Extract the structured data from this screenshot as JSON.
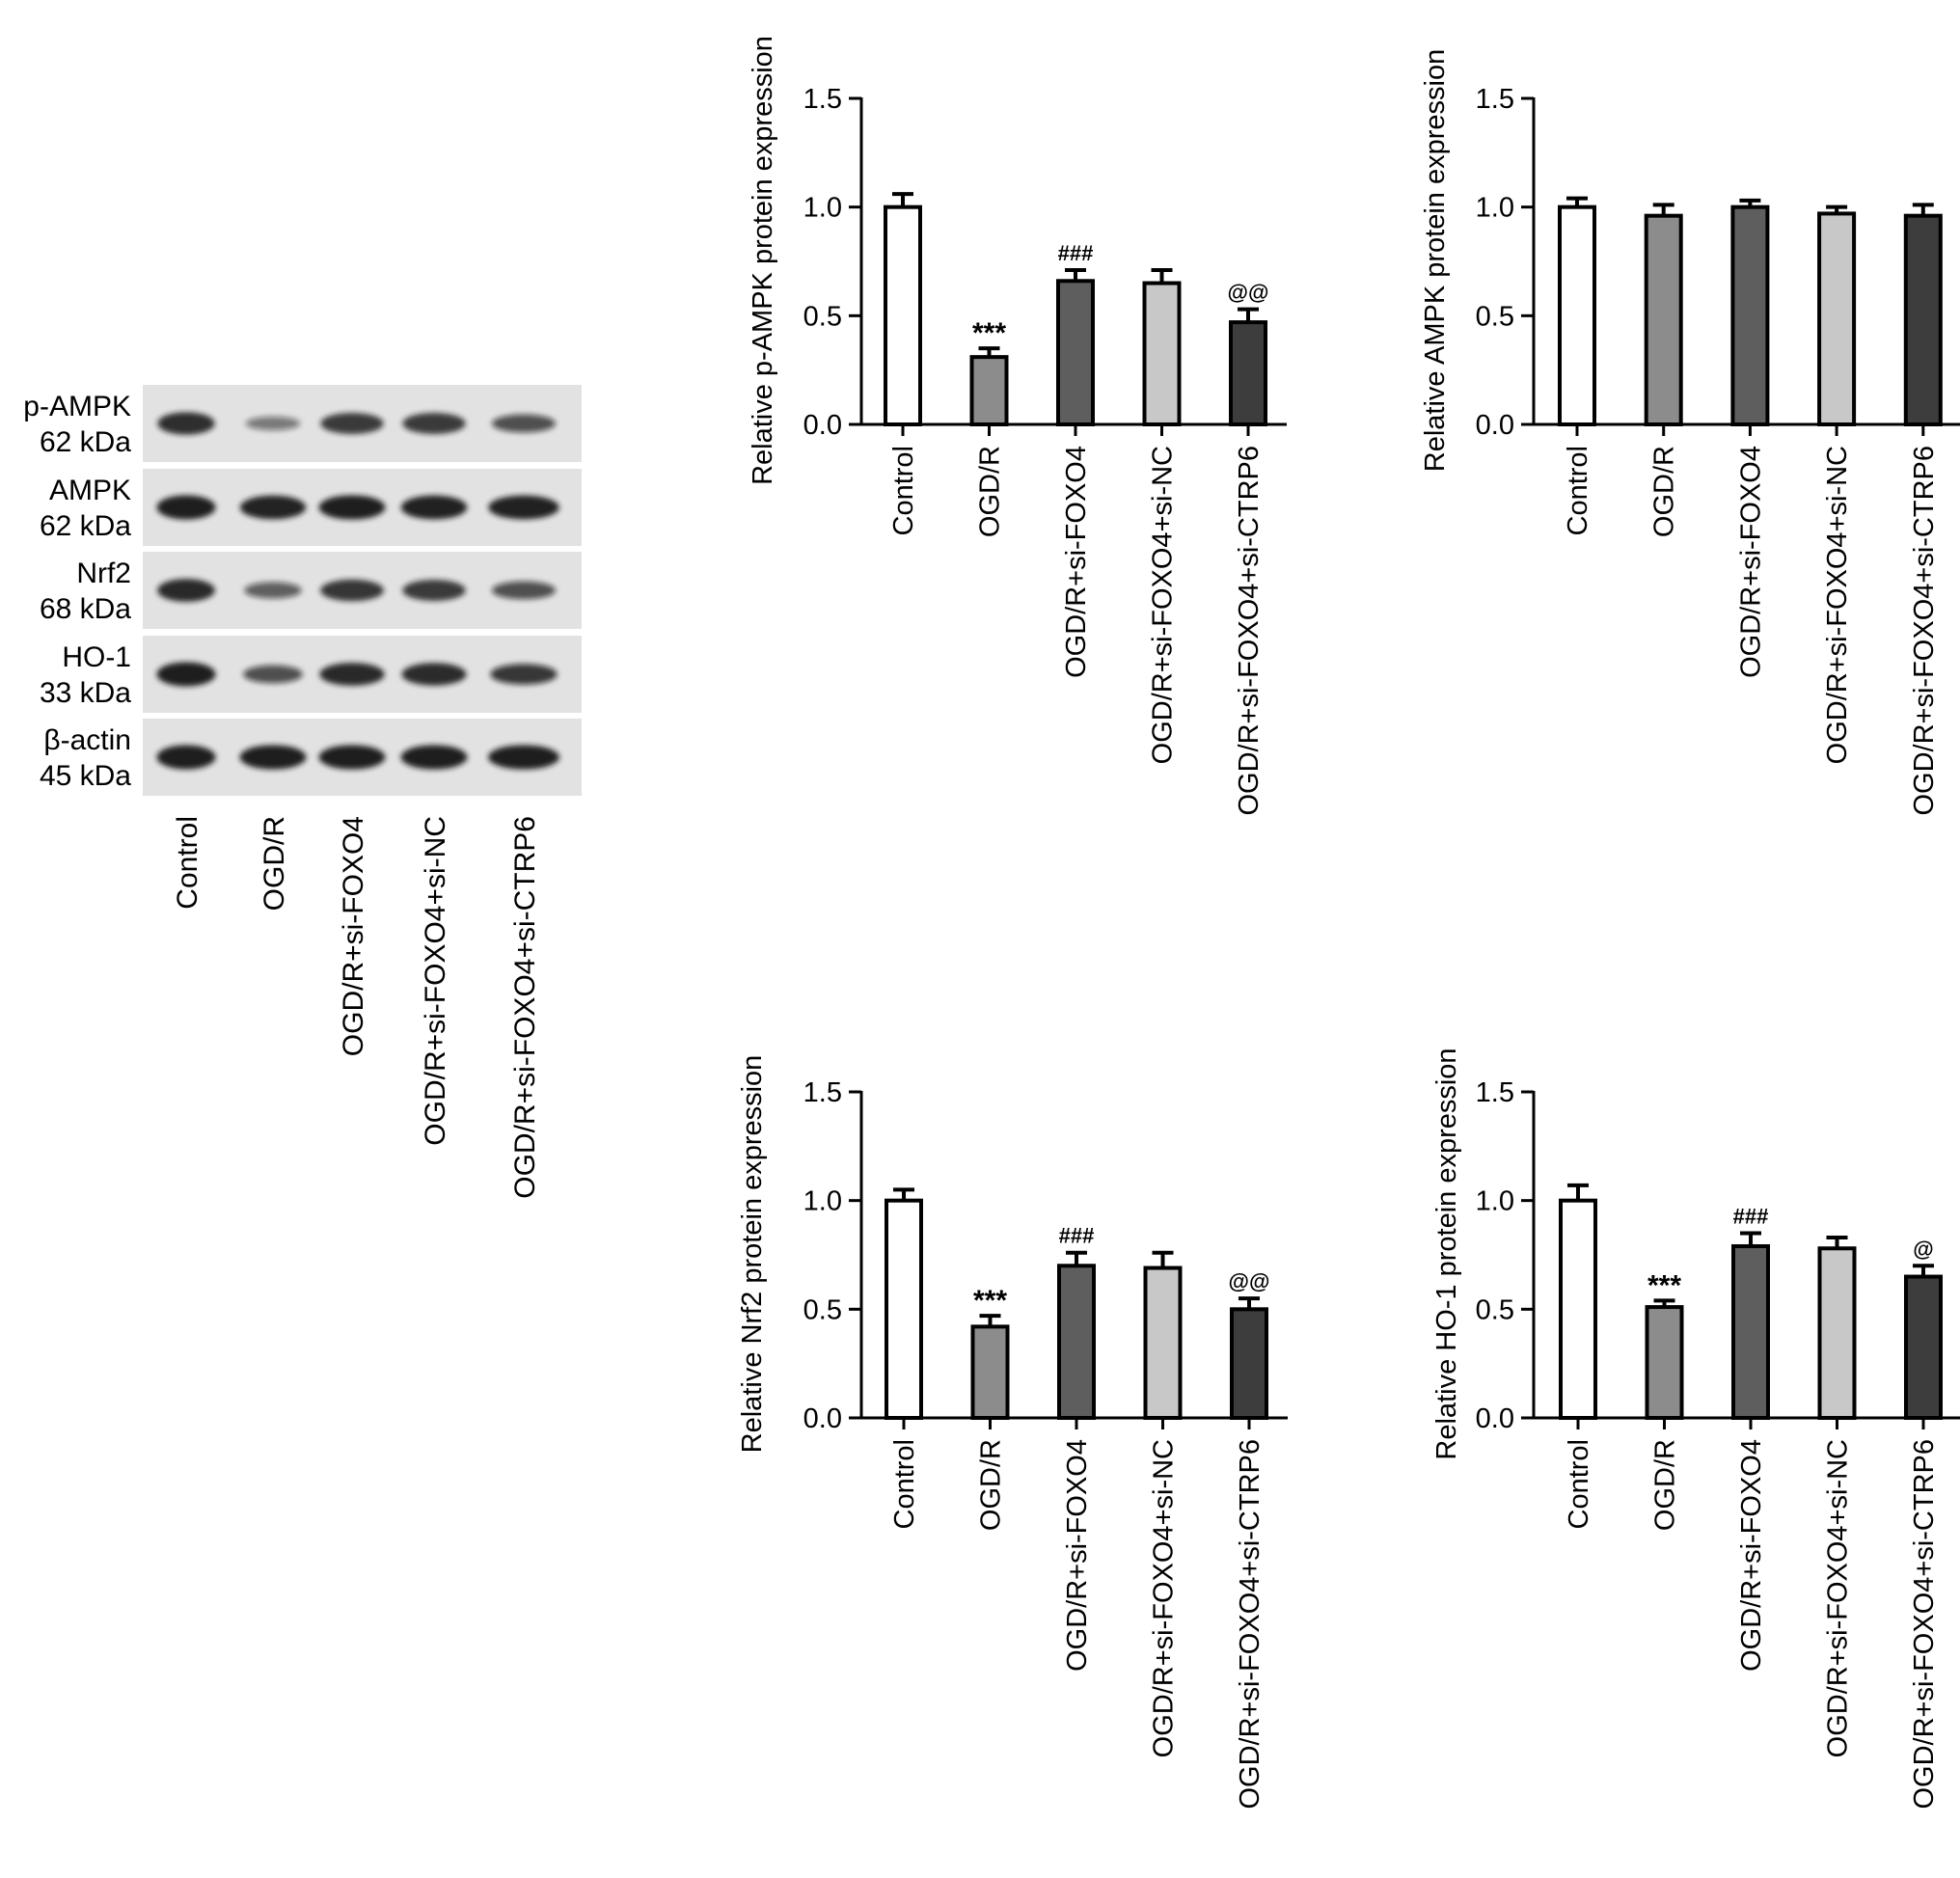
{
  "western_blot": {
    "rows": [
      {
        "name": "p-AMPK",
        "size": "62 kDa",
        "intensities": [
          0.85,
          0.35,
          0.78,
          0.78,
          0.6
        ]
      },
      {
        "name": "AMPK",
        "size": "62 kDa",
        "intensities": [
          0.95,
          0.92,
          0.95,
          0.93,
          0.93
        ]
      },
      {
        "name": "Nrf2",
        "size": "68 kDa",
        "intensities": [
          0.88,
          0.5,
          0.8,
          0.78,
          0.6
        ]
      },
      {
        "name": "HO-1",
        "size": "33 kDa",
        "intensities": [
          0.95,
          0.6,
          0.88,
          0.86,
          0.75
        ]
      },
      {
        "name": "β-actin",
        "size": "45 kDa",
        "intensities": [
          0.95,
          0.95,
          0.95,
          0.95,
          0.95
        ]
      }
    ],
    "lanes": [
      "Control",
      "OGD/R",
      "OGD/R+si-FOXO4",
      "OGD/R+si-FOXO4+si-NC",
      "OGD/R+si-FOXO4+si-CTRP6"
    ]
  },
  "chart_data": [
    {
      "type": "bar",
      "ylabel": "Relative p-AMPK protein expression",
      "categories": [
        "Control",
        "OGD/R",
        "OGD/R+si-FOXO4",
        "OGD/R+si-FOXO4+si-NC",
        "OGD/R+si-FOXO4+si-CTRP6"
      ],
      "values": [
        1.0,
        0.31,
        0.66,
        0.65,
        0.47
      ],
      "errors": [
        0.06,
        0.04,
        0.05,
        0.06,
        0.06
      ],
      "annotations": [
        "",
        "***",
        "###",
        "",
        "@@"
      ],
      "ylim": [
        0,
        1.5
      ],
      "yticks": [
        "0.0",
        "0.5",
        "1.0",
        "1.5"
      ]
    },
    {
      "type": "bar",
      "ylabel": "Relative AMPK protein expression",
      "categories": [
        "Control",
        "OGD/R",
        "OGD/R+si-FOXO4",
        "OGD/R+si-FOXO4+si-NC",
        "OGD/R+si-FOXO4+si-CTRP6"
      ],
      "values": [
        1.0,
        0.96,
        1.0,
        0.97,
        0.96
      ],
      "errors": [
        0.04,
        0.05,
        0.03,
        0.03,
        0.05
      ],
      "annotations": [
        "",
        "",
        "",
        "",
        ""
      ],
      "ylim": [
        0,
        1.5
      ],
      "yticks": [
        "0.0",
        "0.5",
        "1.0",
        "1.5"
      ]
    },
    {
      "type": "bar",
      "ylabel": "Relative Nrf2 protein expression",
      "categories": [
        "Control",
        "OGD/R",
        "OGD/R+si-FOXO4",
        "OGD/R+si-FOXO4+si-NC",
        "OGD/R+si-FOXO4+si-CTRP6"
      ],
      "values": [
        1.0,
        0.42,
        0.7,
        0.69,
        0.5
      ],
      "errors": [
        0.05,
        0.05,
        0.06,
        0.07,
        0.05
      ],
      "annotations": [
        "",
        "***",
        "###",
        "",
        "@@"
      ],
      "ylim": [
        0,
        1.5
      ],
      "yticks": [
        "0.0",
        "0.5",
        "1.0",
        "1.5"
      ]
    },
    {
      "type": "bar",
      "ylabel": "Relative HO-1 protein expression",
      "categories": [
        "Control",
        "OGD/R",
        "OGD/R+si-FOXO4",
        "OGD/R+si-FOXO4+si-NC",
        "OGD/R+si-FOXO4+si-CTRP6"
      ],
      "values": [
        1.0,
        0.51,
        0.79,
        0.78,
        0.65
      ],
      "errors": [
        0.07,
        0.03,
        0.06,
        0.05,
        0.05
      ],
      "annotations": [
        "",
        "***",
        "###",
        "",
        "@"
      ],
      "ylim": [
        0,
        1.5
      ],
      "yticks": [
        "0.0",
        "0.5",
        "1.0",
        "1.5"
      ]
    }
  ],
  "colors": {
    "bar_fills": [
      "#ffffff",
      "#8c8c8c",
      "#5e5e5e",
      "#c8c8c8",
      "#3d3d3d"
    ],
    "blot_background": "#e2e2e2",
    "band": "#141414",
    "stroke": "#000000"
  }
}
